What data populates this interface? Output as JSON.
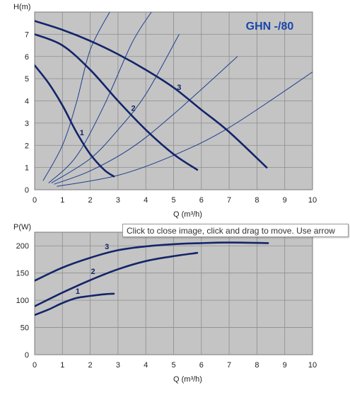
{
  "tooltip_text": "Click to close image, click and drag to move. Use arrow",
  "chart_data": [
    {
      "type": "line",
      "title": "GHN -/80",
      "ylabel": "H(m)",
      "xlabel": "Q (m³/h)",
      "xlim": [
        0,
        10
      ],
      "ylim": [
        0,
        8
      ],
      "xticks": [
        "0",
        "1",
        "2",
        "3",
        "4",
        "5",
        "6",
        "7",
        "8",
        "9",
        "10"
      ],
      "yticks": [
        "0",
        "1",
        "2",
        "3",
        "4",
        "5",
        "6",
        "7"
      ],
      "grid": true,
      "series": [
        {
          "name": "1",
          "x": [
            0,
            0.5,
            1.0,
            1.5,
            2.0,
            2.5,
            2.85
          ],
          "y": [
            5.6,
            4.8,
            3.8,
            2.6,
            1.6,
            0.9,
            0.6
          ]
        },
        {
          "name": "2",
          "x": [
            0,
            1.0,
            2.0,
            3.0,
            4.0,
            5.0,
            5.85
          ],
          "y": [
            7.0,
            6.5,
            5.4,
            4.0,
            2.7,
            1.6,
            0.9
          ]
        },
        {
          "name": "3",
          "x": [
            0,
            1.0,
            2.0,
            3.0,
            4.0,
            5.0,
            6.0,
            7.0,
            8.35
          ],
          "y": [
            7.6,
            7.2,
            6.7,
            6.1,
            5.4,
            4.6,
            3.6,
            2.6,
            1.0
          ]
        }
      ],
      "system_curves": [
        {
          "x": [
            0.3,
            1.0,
            1.5,
            2.0,
            2.7
          ],
          "y": [
            0.4,
            2.0,
            3.9,
            6.3,
            8.0
          ]
        },
        {
          "x": [
            0.5,
            1.5,
            2.5,
            3.5,
            4.2
          ],
          "y": [
            0.3,
            1.5,
            3.8,
            6.6,
            8.0
          ]
        },
        {
          "x": [
            0.6,
            2.0,
            3.0,
            4.0,
            5.2
          ],
          "y": [
            0.3,
            1.4,
            2.7,
            4.3,
            7.0
          ]
        },
        {
          "x": [
            0.7,
            2.0,
            3.5,
            5.0,
            7.3
          ],
          "y": [
            0.25,
            0.85,
            1.9,
            3.4,
            6.0
          ]
        },
        {
          "x": [
            0.8,
            3.0,
            5.0,
            7.0,
            10.0
          ],
          "y": [
            0.15,
            0.65,
            1.55,
            2.8,
            5.3
          ]
        }
      ],
      "labels": [
        {
          "text": "1",
          "x": 1.7,
          "y": 2.45
        },
        {
          "text": "2",
          "x": 3.55,
          "y": 3.55
        },
        {
          "text": "3",
          "x": 5.2,
          "y": 4.5
        }
      ]
    },
    {
      "type": "line",
      "ylabel": "P(W)",
      "xlabel": "Q (m³/h)",
      "xlim": [
        0,
        10
      ],
      "ylim": [
        0,
        225
      ],
      "xticks": [
        "0",
        "1",
        "2",
        "3",
        "4",
        "5",
        "6",
        "7",
        "8",
        "9",
        "10"
      ],
      "yticks": [
        "0",
        "50",
        "100",
        "150",
        "200"
      ],
      "grid": true,
      "series": [
        {
          "name": "1",
          "x": [
            0,
            0.5,
            1.0,
            1.5,
            2.0,
            2.5,
            2.85
          ],
          "y": [
            73,
            83,
            95,
            104,
            108,
            111,
            112
          ]
        },
        {
          "name": "2",
          "x": [
            0,
            1.0,
            2.0,
            3.0,
            4.0,
            5.0,
            5.85
          ],
          "y": [
            89,
            114,
            137,
            157,
            172,
            181,
            187
          ]
        },
        {
          "name": "3",
          "x": [
            0,
            1.0,
            2.0,
            3.0,
            4.0,
            5.0,
            6.0,
            7.0,
            8.4
          ],
          "y": [
            136,
            160,
            178,
            192,
            199,
            203,
            205,
            206,
            205
          ]
        }
      ],
      "labels": [
        {
          "text": "1",
          "x": 1.55,
          "y": 112
        },
        {
          "text": "2",
          "x": 2.1,
          "y": 148
        },
        {
          "text": "3",
          "x": 2.6,
          "y": 194
        }
      ]
    }
  ]
}
